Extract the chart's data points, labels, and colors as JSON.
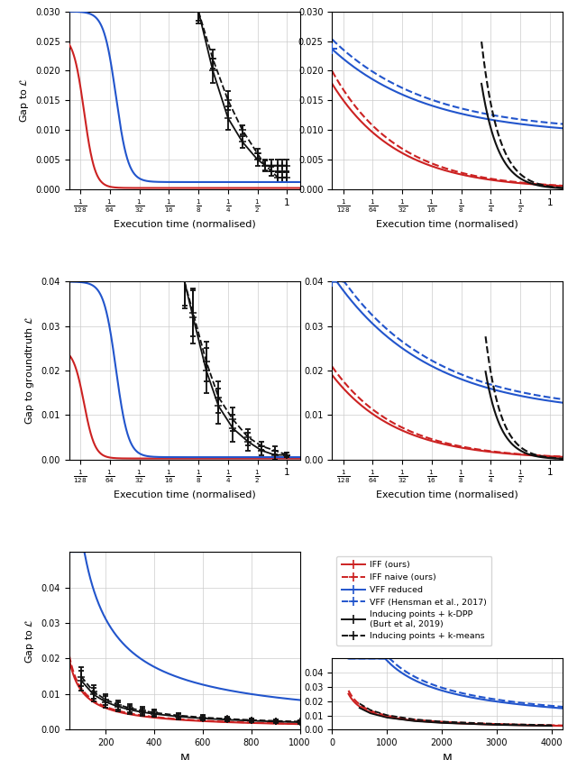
{
  "fig_width": 6.4,
  "fig_height": 8.43,
  "bg": "#ffffff",
  "gc": "#cccccc",
  "red": "#cc2222",
  "blue": "#2255cc",
  "black": "#111111",
  "xtv": [
    0.0078125,
    0.015625,
    0.03125,
    0.0625,
    0.125,
    0.25,
    0.5,
    1.0
  ],
  "xtl": [
    "$\\frac{1}{128}$",
    "$\\frac{1}{64}$",
    "$\\frac{1}{32}$",
    "$\\frac{1}{16}$",
    "$\\frac{1}{8}$",
    "$\\frac{1}{4}$",
    "$\\frac{1}{2}$",
    "1"
  ],
  "panels": {
    "tl": {
      "ylabel": "Gap to $\\mathcal{L}$",
      "ylim": [
        0.0,
        0.03
      ],
      "yticks": [
        0.0,
        0.005,
        0.01,
        0.015,
        0.02,
        0.025,
        0.03
      ]
    },
    "tr": {
      "ylabel": "",
      "ylim": [
        0.0,
        0.03
      ],
      "yticks": [
        0.0,
        0.005,
        0.01,
        0.015,
        0.02,
        0.025,
        0.03
      ]
    },
    "ml": {
      "ylabel": "Gap to groundtruth $\\mathcal{L}$",
      "ylim": [
        0.0,
        0.04
      ],
      "yticks": [
        0.0,
        0.01,
        0.02,
        0.03,
        0.04
      ]
    },
    "mr": {
      "ylabel": "",
      "ylim": [
        0.0,
        0.04
      ],
      "yticks": [
        0.0,
        0.01,
        0.02,
        0.03,
        0.04
      ]
    },
    "bl": {
      "ylabel": "Gap to $\\mathcal{L}$",
      "ylim": [
        0.0,
        0.05
      ],
      "yticks": [
        0.0,
        0.01,
        0.02,
        0.03,
        0.04
      ],
      "xlim": [
        50,
        1000
      ]
    },
    "br": {
      "ylabel": "",
      "ylim": [
        0.0,
        0.05
      ],
      "yticks": [
        0.0,
        0.01,
        0.02,
        0.03,
        0.04
      ],
      "xlim": [
        0,
        4200
      ]
    }
  },
  "legend": [
    {
      "label": "IFF (ours)",
      "color": "#cc2222",
      "ls": "-"
    },
    {
      "label": "IFF naive (ours)",
      "color": "#cc2222",
      "ls": "--"
    },
    {
      "label": "VFF reduced",
      "color": "#2255cc",
      "ls": "-"
    },
    {
      "label": "VFF (Hensman et al., 2017)",
      "color": "#2255cc",
      "ls": "--"
    },
    {
      "label": "Inducing points + k-DPP\n(Burt et al, 2019)",
      "color": "#111111",
      "ls": "-"
    },
    {
      "label": "Inducing points + k-means",
      "color": "#111111",
      "ls": "--"
    }
  ]
}
